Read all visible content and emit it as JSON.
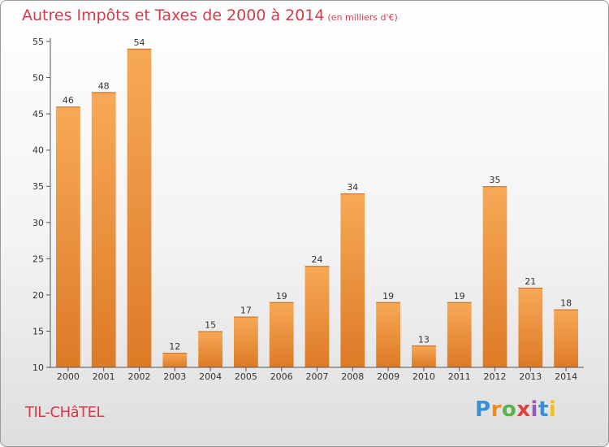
{
  "title": "Autres Impôts et Taxes de 2000 à 2014",
  "unit_note": "(en milliers d'€)",
  "location": "TIL-CHâTEL",
  "logo_text": "Proxiti",
  "chart_data": {
    "type": "bar",
    "title": "Autres Impôts et Taxes de 2000 à 2014",
    "subtitle": "(en milliers d'€)",
    "categories": [
      "2000",
      "2001",
      "2002",
      "2003",
      "2004",
      "2005",
      "2006",
      "2007",
      "2008",
      "2009",
      "2010",
      "2011",
      "2012",
      "2013",
      "2014"
    ],
    "values": [
      46,
      48,
      54,
      12,
      15,
      17,
      19,
      24,
      34,
      19,
      13,
      19,
      35,
      21,
      18
    ],
    "ylim": [
      10,
      55
    ],
    "yticks": [
      10,
      15,
      20,
      25,
      30,
      35,
      40,
      45,
      50,
      55
    ],
    "grid": false,
    "colors": {
      "bar_light": "#f7a957",
      "bar_dark": "#dd7a26",
      "accent": "#d63a4a"
    }
  }
}
